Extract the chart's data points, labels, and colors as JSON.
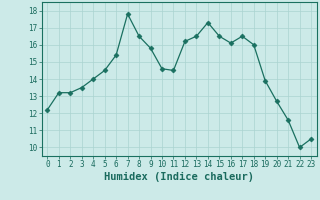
{
  "x": [
    0,
    1,
    2,
    3,
    4,
    5,
    6,
    7,
    8,
    9,
    10,
    11,
    12,
    13,
    14,
    15,
    16,
    17,
    18,
    19,
    20,
    21,
    22,
    23
  ],
  "y": [
    12.2,
    13.2,
    13.2,
    13.5,
    14.0,
    14.5,
    15.4,
    17.8,
    16.5,
    15.8,
    14.6,
    14.5,
    16.2,
    16.5,
    17.3,
    16.5,
    16.1,
    16.5,
    16.0,
    13.9,
    12.7,
    11.6,
    10.0,
    10.5
  ],
  "line_color": "#1a7060",
  "marker": "D",
  "marker_size": 2.5,
  "bg_color": "#cceae8",
  "grid_color": "#aad4d0",
  "xlabel": "Humidex (Indice chaleur)",
  "xlim": [
    -0.5,
    23.5
  ],
  "ylim": [
    9.5,
    18.5
  ],
  "yticks": [
    10,
    11,
    12,
    13,
    14,
    15,
    16,
    17,
    18
  ],
  "xticks": [
    0,
    1,
    2,
    3,
    4,
    5,
    6,
    7,
    8,
    9,
    10,
    11,
    12,
    13,
    14,
    15,
    16,
    17,
    18,
    19,
    20,
    21,
    22,
    23
  ],
  "tick_label_size": 5.5,
  "xlabel_size": 7.5,
  "line_width": 0.9
}
